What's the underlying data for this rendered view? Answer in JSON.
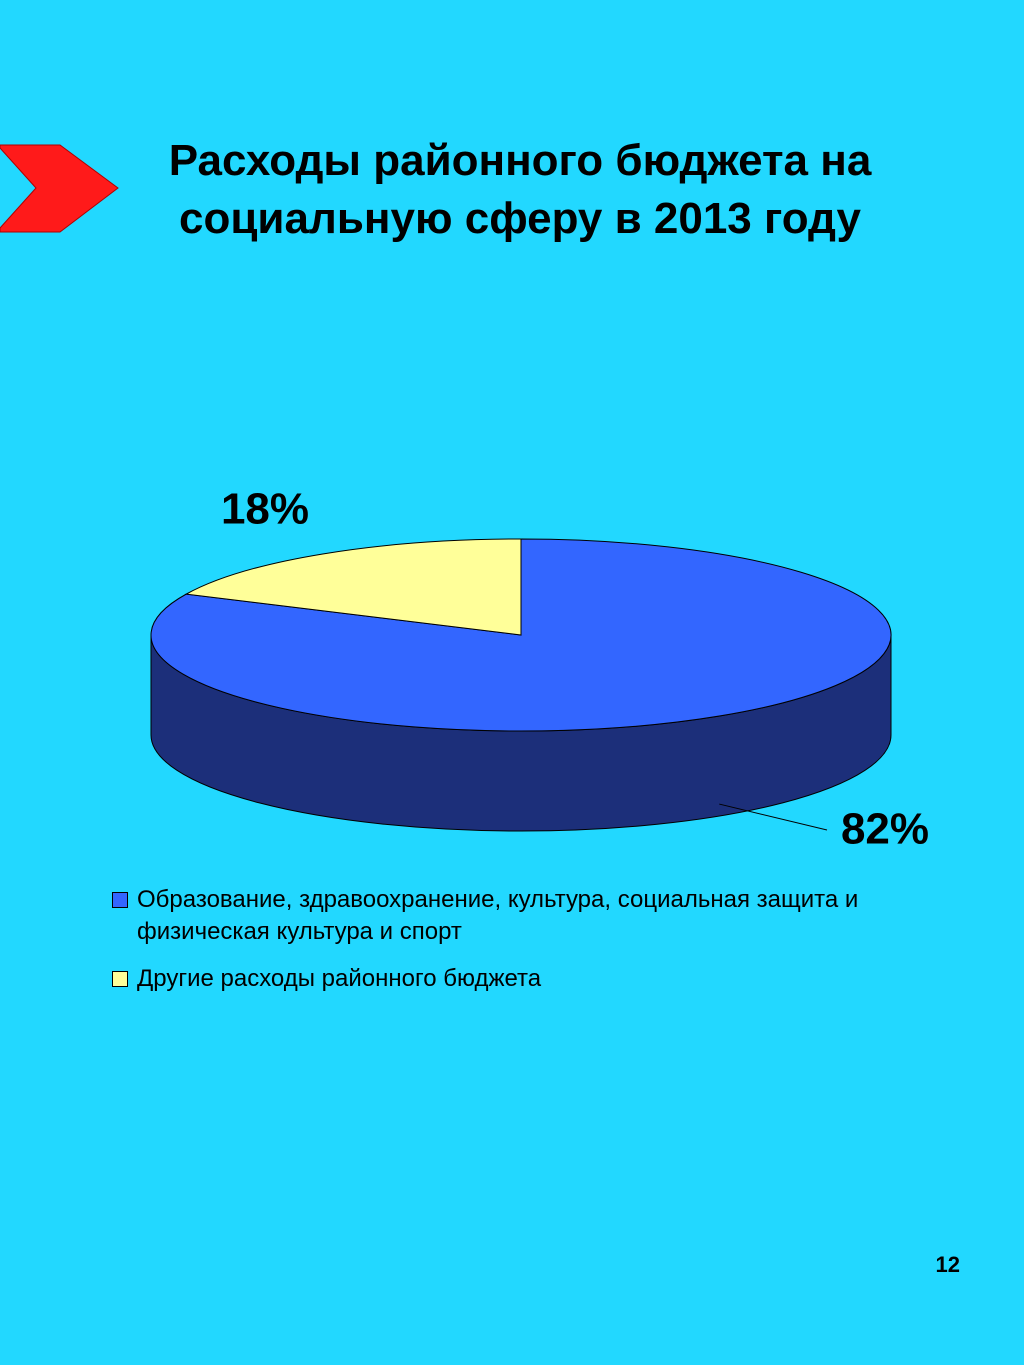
{
  "chart_data": {
    "type": "pie3d",
    "title": "Расходы районного бюджета на социальную сферу в 2013 году",
    "categories": [
      "Образование, здравоохранение, культура, социальная защита и физическая культура и спорт",
      "Другие расходы районного бюджета"
    ],
    "values": [
      82,
      18
    ],
    "value_labels": [
      "82%",
      "18%"
    ],
    "colors": [
      "#3366ff",
      "#ffff99"
    ],
    "side_color": "#1c2f7a"
  },
  "slide_number": "12"
}
